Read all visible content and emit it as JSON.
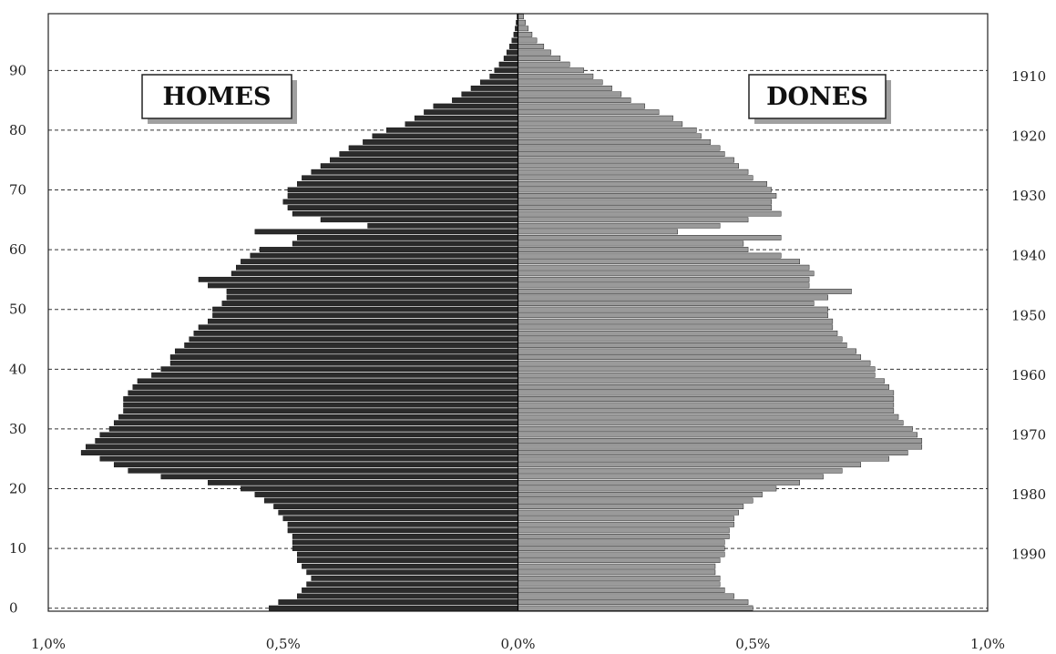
{
  "chart_data": {
    "type": "bar",
    "orientation": "horizontal",
    "subtype": "population-pyramid",
    "series": [
      {
        "name": "HOMES",
        "side": "left",
        "color": "#2b2b2b",
        "ages": [
          0,
          1,
          2,
          3,
          4,
          5,
          6,
          7,
          8,
          9,
          10,
          11,
          12,
          13,
          14,
          15,
          16,
          17,
          18,
          19,
          20,
          21,
          22,
          23,
          24,
          25,
          26,
          27,
          28,
          29,
          30,
          31,
          32,
          33,
          34,
          35,
          36,
          37,
          38,
          39,
          40,
          41,
          42,
          43,
          44,
          45,
          46,
          47,
          48,
          49,
          50,
          51,
          52,
          53,
          54,
          55,
          56,
          57,
          58,
          59,
          60,
          61,
          62,
          63,
          64,
          65,
          66,
          67,
          68,
          69,
          70,
          71,
          72,
          73,
          74,
          75,
          76,
          77,
          78,
          79,
          80,
          81,
          82,
          83,
          84,
          85,
          86,
          87,
          88,
          89,
          90,
          91,
          92,
          93,
          94,
          95,
          96,
          97,
          98,
          99
        ],
        "values": [
          0.53,
          0.51,
          0.47,
          0.46,
          0.45,
          0.44,
          0.45,
          0.46,
          0.47,
          0.47,
          0.48,
          0.48,
          0.48,
          0.49,
          0.49,
          0.5,
          0.51,
          0.52,
          0.54,
          0.56,
          0.59,
          0.66,
          0.76,
          0.83,
          0.86,
          0.89,
          0.93,
          0.92,
          0.9,
          0.89,
          0.87,
          0.86,
          0.85,
          0.84,
          0.84,
          0.84,
          0.83,
          0.82,
          0.81,
          0.78,
          0.76,
          0.74,
          0.74,
          0.73,
          0.71,
          0.7,
          0.69,
          0.68,
          0.66,
          0.65,
          0.65,
          0.63,
          0.62,
          0.62,
          0.66,
          0.68,
          0.61,
          0.6,
          0.59,
          0.57,
          0.55,
          0.48,
          0.47,
          0.56,
          0.32,
          0.42,
          0.48,
          0.49,
          0.5,
          0.49,
          0.49,
          0.47,
          0.46,
          0.44,
          0.42,
          0.4,
          0.38,
          0.36,
          0.33,
          0.31,
          0.28,
          0.24,
          0.22,
          0.2,
          0.18,
          0.14,
          0.12,
          0.1,
          0.08,
          0.06,
          0.05,
          0.04,
          0.03,
          0.024,
          0.018,
          0.013,
          0.009,
          0.006,
          0.004,
          0.002
        ]
      },
      {
        "name": "DONES",
        "side": "right",
        "color": "#9a9a9a",
        "ages": [
          0,
          1,
          2,
          3,
          4,
          5,
          6,
          7,
          8,
          9,
          10,
          11,
          12,
          13,
          14,
          15,
          16,
          17,
          18,
          19,
          20,
          21,
          22,
          23,
          24,
          25,
          26,
          27,
          28,
          29,
          30,
          31,
          32,
          33,
          34,
          35,
          36,
          37,
          38,
          39,
          40,
          41,
          42,
          43,
          44,
          45,
          46,
          47,
          48,
          49,
          50,
          51,
          52,
          53,
          54,
          55,
          56,
          57,
          58,
          59,
          60,
          61,
          62,
          63,
          64,
          65,
          66,
          67,
          68,
          69,
          70,
          71,
          72,
          73,
          74,
          75,
          76,
          77,
          78,
          79,
          80,
          81,
          82,
          83,
          84,
          85,
          86,
          87,
          88,
          89,
          90,
          91,
          92,
          93,
          94,
          95,
          96,
          97,
          98,
          99
        ],
        "values": [
          0.5,
          0.49,
          0.46,
          0.44,
          0.43,
          0.43,
          0.42,
          0.42,
          0.43,
          0.44,
          0.44,
          0.44,
          0.45,
          0.45,
          0.46,
          0.46,
          0.47,
          0.48,
          0.5,
          0.52,
          0.55,
          0.6,
          0.65,
          0.69,
          0.73,
          0.79,
          0.83,
          0.86,
          0.86,
          0.85,
          0.84,
          0.82,
          0.81,
          0.8,
          0.8,
          0.8,
          0.8,
          0.79,
          0.78,
          0.76,
          0.76,
          0.75,
          0.73,
          0.72,
          0.7,
          0.69,
          0.68,
          0.67,
          0.67,
          0.66,
          0.66,
          0.63,
          0.66,
          0.71,
          0.62,
          0.62,
          0.63,
          0.62,
          0.6,
          0.56,
          0.49,
          0.48,
          0.56,
          0.34,
          0.43,
          0.49,
          0.56,
          0.54,
          0.54,
          0.55,
          0.54,
          0.53,
          0.5,
          0.49,
          0.47,
          0.46,
          0.44,
          0.43,
          0.41,
          0.39,
          0.38,
          0.35,
          0.33,
          0.3,
          0.27,
          0.24,
          0.22,
          0.2,
          0.18,
          0.16,
          0.14,
          0.11,
          0.09,
          0.07,
          0.055,
          0.04,
          0.03,
          0.022,
          0.016,
          0.012
        ]
      }
    ],
    "x_ticks": [
      "1,0%",
      "0,5%",
      "0,0%",
      "0,5%",
      "1,0%"
    ],
    "xlim": [
      -1.0,
      1.0
    ],
    "ylim": [
      0,
      99
    ],
    "age_ticks": [
      "0",
      "10",
      "20",
      "30",
      "40",
      "50",
      "60",
      "70",
      "80",
      "90"
    ],
    "year_ticks": [
      "1910",
      "1920",
      "1930",
      "1940",
      "1950",
      "1960",
      "1970",
      "1980",
      "1990"
    ],
    "year_tick_ages": [
      89,
      79,
      69,
      59,
      49,
      39,
      29,
      19,
      9
    ],
    "gridlines": "dashed-horizontal",
    "legend_labels": {
      "left": "HOMES",
      "right": "DONES"
    }
  }
}
